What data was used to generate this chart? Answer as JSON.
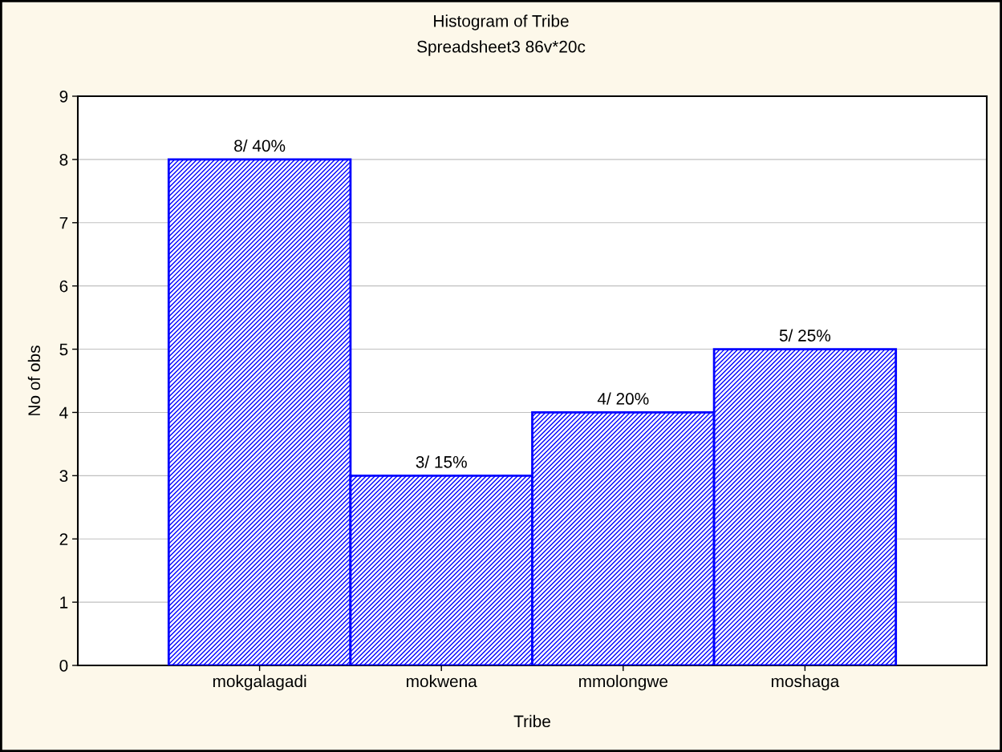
{
  "chart_data": {
    "type": "bar",
    "title": "Histogram of Tribe",
    "subtitle": "Spreadsheet3 86v*20c",
    "xlabel": "Tribe",
    "ylabel": "No of obs",
    "categories": [
      "mokgalagadi",
      "mokwena",
      "mmolongwe",
      "moshaga"
    ],
    "values": [
      8,
      3,
      4,
      5
    ],
    "value_labels": [
      "8/ 40%",
      "3/ 15%",
      "4/ 20%",
      "5/ 25%"
    ],
    "color": "#0000ff",
    "ylim": [
      0,
      9
    ],
    "yticks": [
      0,
      1,
      2,
      3,
      4,
      5,
      6,
      7,
      8,
      9
    ],
    "grid": "y"
  }
}
